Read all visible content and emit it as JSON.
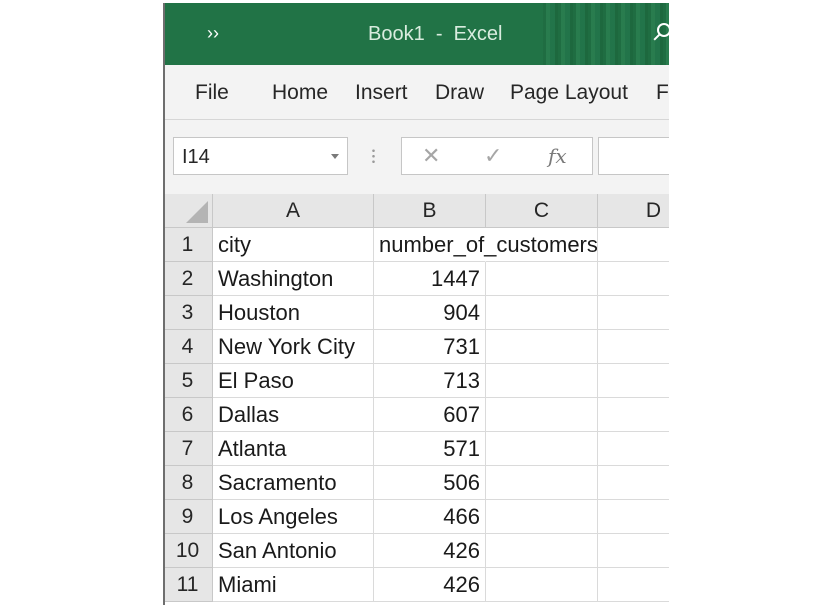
{
  "window": {
    "title": "Book1  -  Excel",
    "more_glyph": "››",
    "accent": "#217346"
  },
  "ribbon": {
    "tabs": [
      "File",
      "Home",
      "Insert",
      "Draw",
      "Page Layout",
      "Fo"
    ]
  },
  "formula_bar": {
    "name_box": "I14",
    "cancel_glyph": "✕",
    "enter_glyph": "✓",
    "fx_label": "fx"
  },
  "sheet": {
    "columns": [
      "A",
      "B",
      "C",
      "D"
    ],
    "header_row": {
      "row": "1",
      "a": "city",
      "b": "number_of_customers"
    },
    "rows": [
      {
        "row": "2",
        "city": "Washington",
        "value": "1447"
      },
      {
        "row": "3",
        "city": "Houston",
        "value": "904"
      },
      {
        "row": "4",
        "city": "New York City",
        "value": "731"
      },
      {
        "row": "5",
        "city": "El Paso",
        "value": "713"
      },
      {
        "row": "6",
        "city": "Dallas",
        "value": "607"
      },
      {
        "row": "7",
        "city": "Atlanta",
        "value": "571"
      },
      {
        "row": "8",
        "city": "Sacramento",
        "value": "506"
      },
      {
        "row": "9",
        "city": "Los Angeles",
        "value": "466"
      },
      {
        "row": "10",
        "city": "San Antonio",
        "value": "426"
      },
      {
        "row": "11",
        "city": "Miami",
        "value": "426"
      }
    ]
  }
}
